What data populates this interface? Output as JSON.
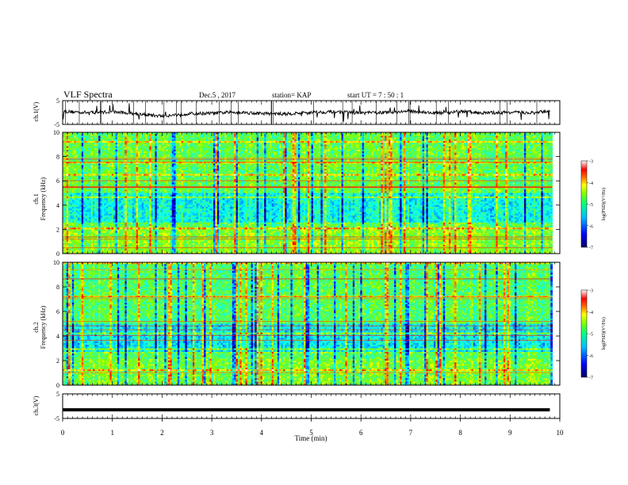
{
  "header": {
    "title": "VLF Spectra",
    "date": "Dec.5 , 2017",
    "station": "station= KAP",
    "start": "start  UT  =   7 : 50 : 1"
  },
  "chart_data": [
    {
      "type": "line",
      "panel": "ch1-waveform",
      "ylabel": "ch.1(V)",
      "ylim": [
        -5,
        5
      ],
      "y_ticks": [
        "5",
        "-5"
      ],
      "xlim": [
        0,
        10
      ],
      "series": [
        {
          "description_values": "noisy waveform hovering near 0 V with occasional spikes",
          "x": [
            0,
            0.5,
            1,
            1.5,
            2,
            2.5,
            3,
            3.5,
            4,
            4.5,
            5,
            5.5,
            6,
            6.5,
            7,
            7.5,
            8,
            8.5,
            9,
            9.5,
            9.8
          ],
          "values": [
            0.5,
            0,
            0.3,
            -0.5,
            -1.5,
            -0.5,
            -0.3,
            0.2,
            -0.4,
            -0.6,
            0.1,
            0.3,
            -0.2,
            0.0,
            0.6,
            -0.3,
            0.4,
            -0.2,
            0.1,
            -0.2,
            0.8
          ]
        }
      ],
      "color": "#000000"
    },
    {
      "type": "heatmap",
      "panel": "ch1-spectrogram",
      "ylabel": "ch.1\nFrequency (kHz)",
      "ylim": [
        0,
        10
      ],
      "y_ticks": [
        "0",
        "2",
        "4",
        "6",
        "8",
        "10"
      ],
      "xlim": [
        0,
        10
      ],
      "colorbar": {
        "label": "log(PSD)(V²/Hz)",
        "ticks": [
          "-3",
          "-4",
          "-5",
          "-6",
          "-7"
        ],
        "range": [
          -7,
          -3
        ]
      }
    },
    {
      "type": "heatmap",
      "panel": "ch2-spectrogram",
      "ylabel": "ch.2\nFrequency (kHz)",
      "ylim": [
        0,
        10
      ],
      "y_ticks": [
        "0",
        "2",
        "4",
        "6",
        "8",
        "10"
      ],
      "xlim": [
        0,
        10
      ],
      "colorbar": {
        "label": "log(PSD)(V²/Hz)",
        "ticks": [
          "-3",
          "-4",
          "-5",
          "-6",
          "-7"
        ],
        "range": [
          -7,
          -3
        ]
      }
    },
    {
      "type": "line",
      "panel": "ch3-waveform",
      "ylabel": "ch.3(V)",
      "ylim": [
        -5,
        5
      ],
      "y_ticks": [
        "5",
        "-5"
      ],
      "xlim": [
        0,
        10
      ],
      "series": [
        {
          "x": [
            0,
            9.8
          ],
          "values": [
            -1.5,
            -1.5
          ]
        }
      ],
      "xlabel": "Time (min)",
      "x_ticks": [
        "0",
        "1",
        "2",
        "3",
        "4",
        "5",
        "6",
        "7",
        "8",
        "9",
        "10"
      ]
    }
  ],
  "colors": {
    "colormap": [
      "#00007f",
      "#0000ff",
      "#00a0ff",
      "#00ffff",
      "#40ff80",
      "#80ff00",
      "#ffff00",
      "#ff8000",
      "#ff0000",
      "#ffffff"
    ],
    "axis": "#000000"
  }
}
